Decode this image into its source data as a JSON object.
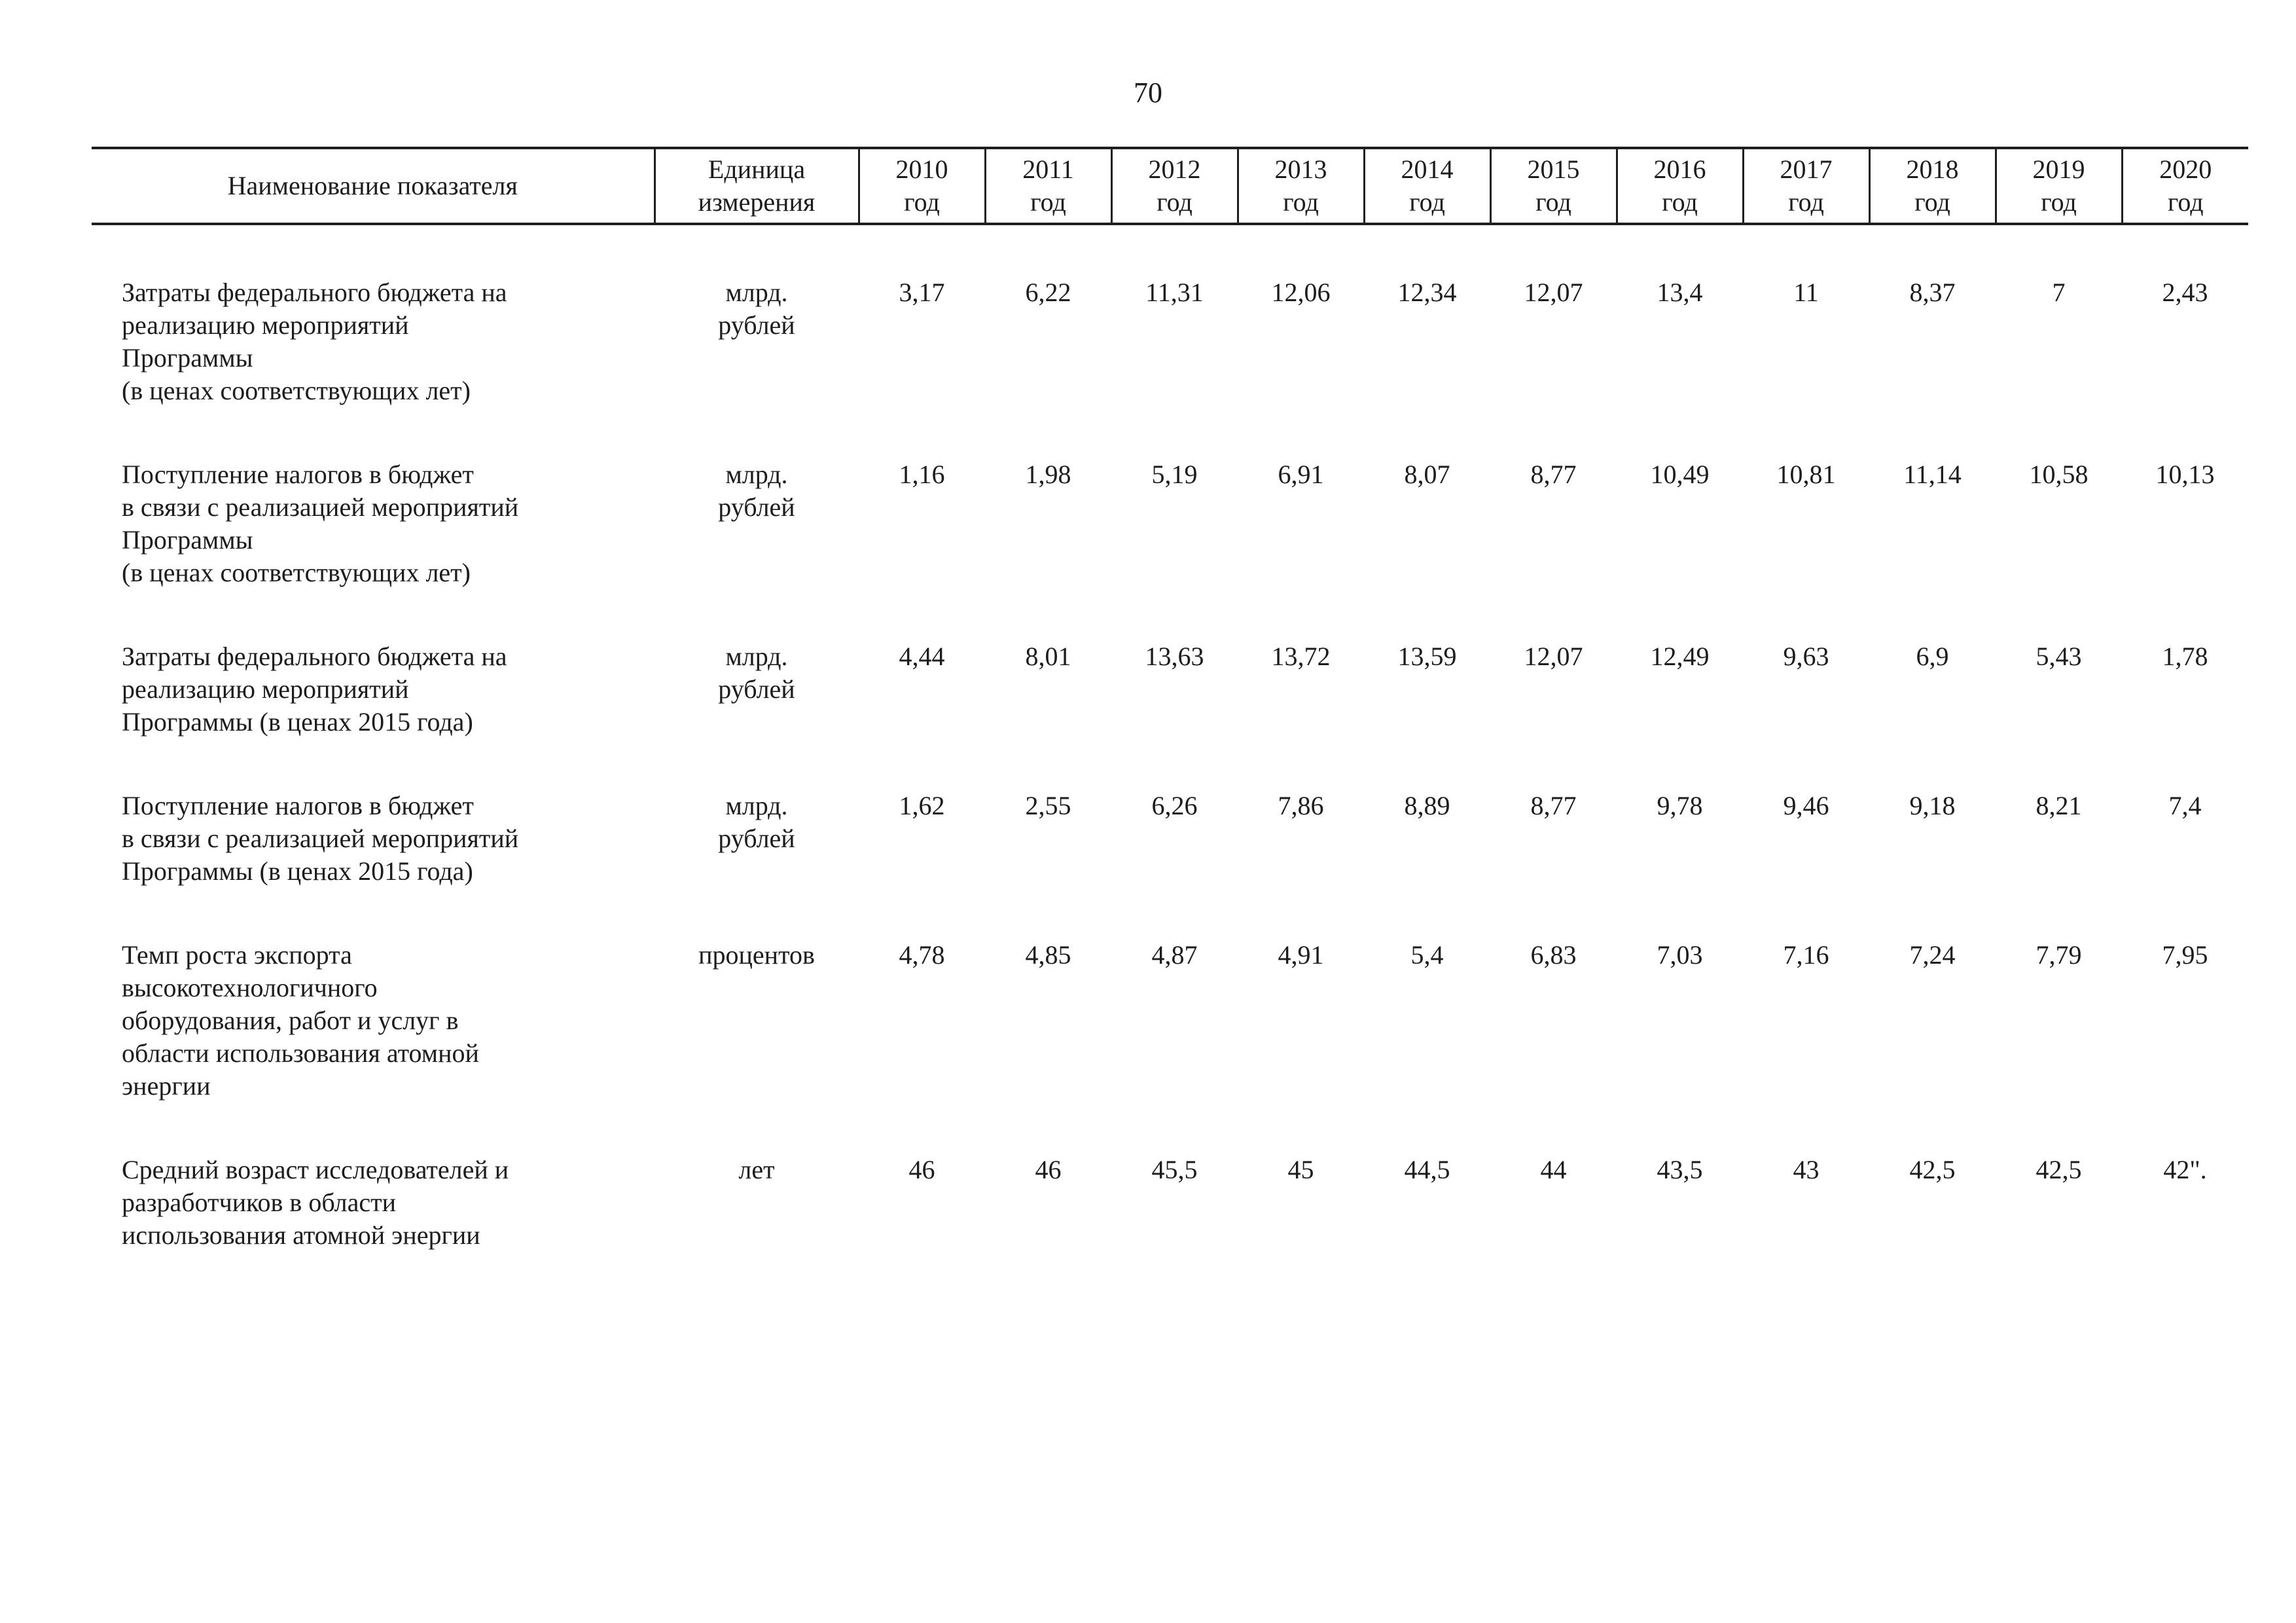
{
  "page_number": "70",
  "table": {
    "header": {
      "name": "Наименование показателя",
      "unit": "Единица\nизмерения",
      "years": [
        "2010\nгод",
        "2011\nгод",
        "2012\nгод",
        "2013\nгод",
        "2014\nгод",
        "2015\nгод",
        "2016\nгод",
        "2017\nгод",
        "2018\nгод",
        "2019\nгод",
        "2020\nгод"
      ]
    },
    "rows": [
      {
        "name": "Затраты федерального бюджета на\nреализацию мероприятий\nПрограммы\n(в ценах соответствующих лет)",
        "unit": "млрд.\nрублей",
        "values": [
          "3,17",
          "6,22",
          "11,31",
          "12,06",
          "12,34",
          "12,07",
          "13,4",
          "11",
          "8,37",
          "7",
          "2,43"
        ]
      },
      {
        "name": "Поступление налогов в бюджет\nв связи с реализацией мероприятий\nПрограммы\n(в ценах соответствующих лет)",
        "unit": "млрд.\nрублей",
        "values": [
          "1,16",
          "1,98",
          "5,19",
          "6,91",
          "8,07",
          "8,77",
          "10,49",
          "10,81",
          "11,14",
          "10,58",
          "10,13"
        ]
      },
      {
        "name": "Затраты федерального бюджета на\nреализацию мероприятий\nПрограммы (в ценах 2015 года)",
        "unit": "млрд.\nрублей",
        "values": [
          "4,44",
          "8,01",
          "13,63",
          "13,72",
          "13,59",
          "12,07",
          "12,49",
          "9,63",
          "6,9",
          "5,43",
          "1,78"
        ]
      },
      {
        "name": "Поступление налогов в бюджет\nв связи с реализацией мероприятий\nПрограммы (в ценах 2015 года)",
        "unit": "млрд.\nрублей",
        "values": [
          "1,62",
          "2,55",
          "6,26",
          "7,86",
          "8,89",
          "8,77",
          "9,78",
          "9,46",
          "9,18",
          "8,21",
          "7,4"
        ]
      },
      {
        "name": "Темп роста экспорта\nвысокотехнологичного\nоборудования, работ и услуг в\nобласти использования атомной\nэнергии",
        "unit": "процентов",
        "values": [
          "4,78",
          "4,85",
          "4,87",
          "4,91",
          "5,4",
          "6,83",
          "7,03",
          "7,16",
          "7,24",
          "7,79",
          "7,95"
        ]
      },
      {
        "name": "Средний возраст исследователей и\nразработчиков в области\nиспользования атомной энергии",
        "unit": "лет",
        "values": [
          "46",
          "46",
          "45,5",
          "45",
          "44,5",
          "44",
          "43,5",
          "43",
          "42,5",
          "42,5",
          "42\"."
        ]
      }
    ]
  }
}
